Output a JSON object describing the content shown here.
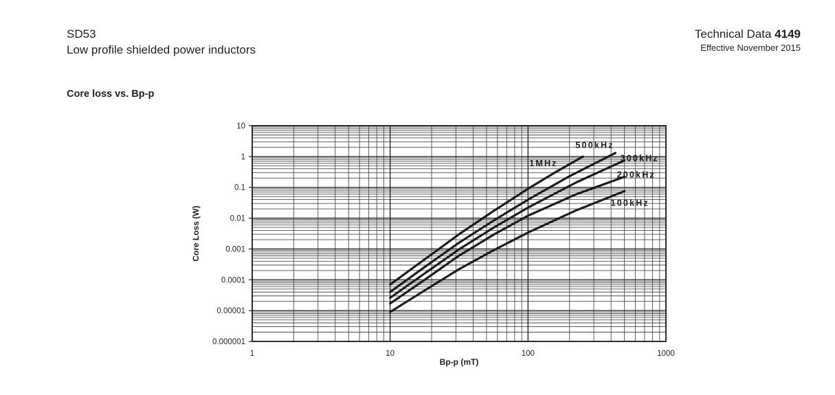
{
  "page": {
    "product": "SD53",
    "subtitle": "Low profile shielded power inductors",
    "doc_label": "Technical Data",
    "doc_number": "4149",
    "effective": "Effective November 2015",
    "section_title": "Core loss vs. Bp-p"
  },
  "chart_data": {
    "type": "line",
    "title": "Core loss vs. Bp-p",
    "xlabel": "Bp-p (mT)",
    "ylabel": "Core Loss (W)",
    "x_scale": "log",
    "y_scale": "log",
    "xlim": [
      1,
      1000
    ],
    "ylim": [
      1e-06,
      10
    ],
    "x_ticks": [
      "1",
      "10",
      "100",
      "1000"
    ],
    "y_ticks": [
      "10",
      "1",
      "0.1",
      "0.01",
      "0.001",
      "0.0001",
      "0.00001",
      "0.000001"
    ],
    "grid": "log major and minor gridlines on both axes",
    "legend": "inline labels at curve ends",
    "colors": {
      "curve": "#1c1c1c",
      "grid": "#4a4a4a",
      "text": "#231f20"
    },
    "series": [
      {
        "name": "1MHz",
        "points": [
          [
            10,
            7e-05
          ],
          [
            17.8,
            0.00046
          ],
          [
            31.6,
            0.003
          ],
          [
            56.2,
            0.017
          ],
          [
            100,
            0.09
          ],
          [
            158,
            0.31
          ],
          [
            250,
            1.0
          ]
        ],
        "label_offset": [
          -78,
          14
        ]
      },
      {
        "name": "500kHz",
        "points": [
          [
            10,
            4e-05
          ],
          [
            17.8,
            0.00026
          ],
          [
            31.6,
            0.0016
          ],
          [
            56.2,
            0.0083
          ],
          [
            100,
            0.04
          ],
          [
            200,
            0.23
          ],
          [
            430,
            1.3
          ]
        ],
        "label_offset": [
          -58,
          -7
        ]
      },
      {
        "name": "300kHz",
        "points": [
          [
            10,
            2.6e-05
          ],
          [
            17.8,
            0.00016
          ],
          [
            31.6,
            0.00097
          ],
          [
            56.2,
            0.0049
          ],
          [
            100,
            0.022
          ],
          [
            224,
            0.145
          ],
          [
            500,
            0.75
          ]
        ],
        "label_offset": [
          -6,
          1
        ]
      },
      {
        "name": "200kHz",
        "points": [
          [
            10,
            1.7e-05
          ],
          [
            17.8,
            0.0001
          ],
          [
            31.6,
            0.00061
          ],
          [
            56.2,
            0.0029
          ],
          [
            100,
            0.012
          ],
          [
            224,
            0.06
          ],
          [
            500,
            0.22
          ]
        ],
        "label_offset": [
          -11,
          1
        ]
      },
      {
        "name": "100kHz",
        "points": [
          [
            10,
            9e-06
          ],
          [
            17.8,
            4.5e-05
          ],
          [
            31.6,
            0.00022
          ],
          [
            56.2,
            0.00091
          ],
          [
            100,
            0.0034
          ],
          [
            224,
            0.018
          ],
          [
            500,
            0.075
          ]
        ],
        "label_offset": [
          -20,
          21
        ]
      }
    ]
  }
}
